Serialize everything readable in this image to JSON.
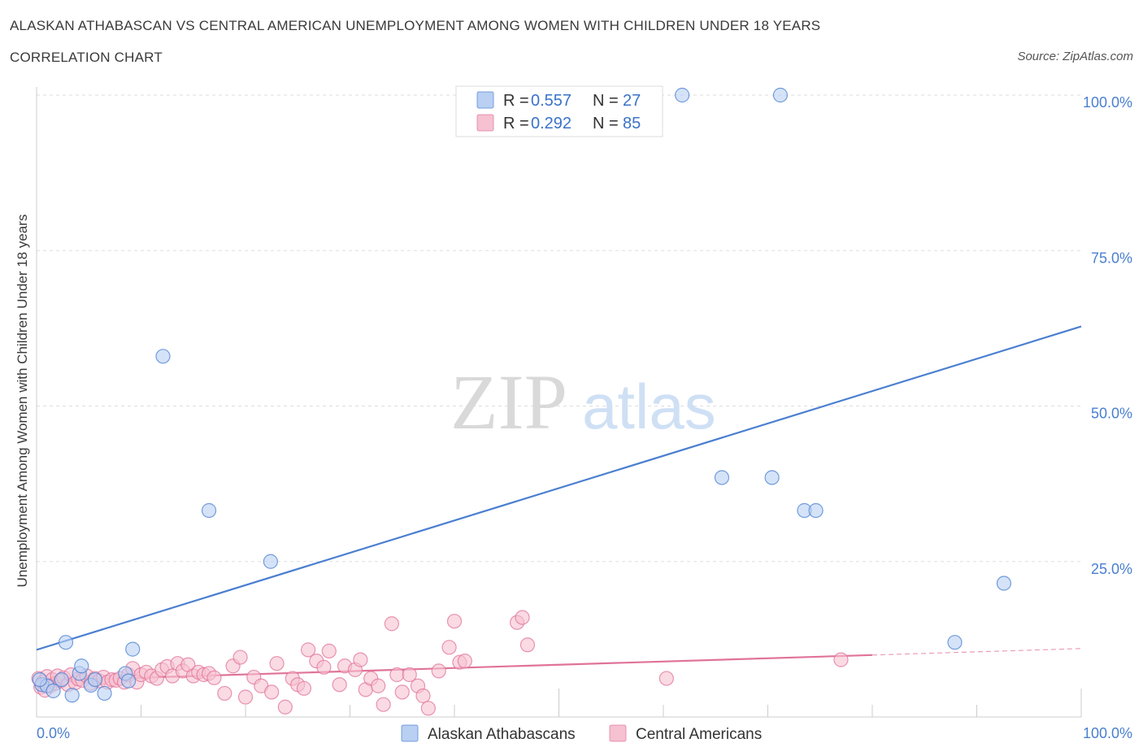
{
  "title": "ALASKAN ATHABASCAN VS CENTRAL AMERICAN UNEMPLOYMENT AMONG WOMEN WITH CHILDREN UNDER 18 YEARS",
  "subtitle": "CORRELATION CHART",
  "source": "Source: ZipAtlas.com",
  "watermark": {
    "zip": "ZIP",
    "atlas": "atlas"
  },
  "legend_top": {
    "r_label": "R =",
    "n_label": "N =",
    "rows": [
      {
        "r": "0.557",
        "n": "27",
        "color": "#a9c6f2"
      },
      {
        "r": "0.292",
        "n": "85",
        "color": "#f6b8cb"
      }
    ]
  },
  "chart_data": {
    "type": "scatter",
    "ylabel": "Unemployment Among Women with Children Under 18 years",
    "xlabel": "",
    "xlim": [
      0,
      100
    ],
    "ylim": [
      0,
      100
    ],
    "x_ticks": [
      "0.0%",
      "100.0%"
    ],
    "y_ticks": [
      {
        "value": 100,
        "label": "100.0%"
      },
      {
        "value": 75,
        "label": "75.0%"
      },
      {
        "value": 50,
        "label": "50.0%"
      },
      {
        "value": 25,
        "label": "25.0%"
      }
    ],
    "grid": true,
    "legend_position": "bottom",
    "series": [
      {
        "name": "Alaskan Athabascans",
        "color": "#4a7fd0",
        "fill": "#b9d0f3",
        "r": 0.557,
        "n": 27,
        "trend": {
          "x0": 0,
          "y0": 10.8,
          "x1": 100,
          "y1": 62.8,
          "dash_from": null
        },
        "points": [
          [
            0.5,
            5.2
          ],
          [
            1.0,
            5.0
          ],
          [
            1.6,
            4.2
          ],
          [
            2.4,
            6.0
          ],
          [
            2.8,
            12.0
          ],
          [
            3.4,
            3.5
          ],
          [
            4.1,
            7.0
          ],
          [
            4.3,
            8.2
          ],
          [
            5.2,
            5.1
          ],
          [
            5.6,
            6.0
          ],
          [
            6.5,
            3.8
          ],
          [
            8.5,
            7.0
          ],
          [
            8.8,
            5.8
          ],
          [
            9.2,
            10.9
          ],
          [
            12.1,
            58.0
          ],
          [
            16.5,
            33.2
          ],
          [
            22.4,
            25.0
          ],
          [
            52.0,
            100.0
          ],
          [
            61.8,
            100.0
          ],
          [
            71.2,
            100.0
          ],
          [
            65.6,
            38.5
          ],
          [
            70.4,
            38.5
          ],
          [
            73.5,
            33.2
          ],
          [
            74.6,
            33.2
          ],
          [
            87.9,
            12.0
          ],
          [
            92.6,
            21.5
          ],
          [
            0.3,
            6.0
          ]
        ]
      },
      {
        "name": "Central Americans",
        "color": "#e0739a",
        "fill": "#f6c1d1",
        "r": 0.292,
        "n": 85,
        "trend": {
          "x0": 0,
          "y0": 5.8,
          "x1": 100,
          "y1": 11.0,
          "dash_from": 80
        },
        "points": [
          [
            0.2,
            6.2
          ],
          [
            0.4,
            4.8
          ],
          [
            0.6,
            5.6
          ],
          [
            0.8,
            4.3
          ],
          [
            1.0,
            6.5
          ],
          [
            1.3,
            5.0
          ],
          [
            1.5,
            6.0
          ],
          [
            1.8,
            5.4
          ],
          [
            2.0,
            6.6
          ],
          [
            2.3,
            5.8
          ],
          [
            2.6,
            6.3
          ],
          [
            3.0,
            5.2
          ],
          [
            3.3,
            6.8
          ],
          [
            3.7,
            5.5
          ],
          [
            4.0,
            6.1
          ],
          [
            4.4,
            5.9
          ],
          [
            4.8,
            6.6
          ],
          [
            5.2,
            5.4
          ],
          [
            5.6,
            6.2
          ],
          [
            6.0,
            5.8
          ],
          [
            6.4,
            6.4
          ],
          [
            6.8,
            5.6
          ],
          [
            7.2,
            6.0
          ],
          [
            7.6,
            5.9
          ],
          [
            8.0,
            6.2
          ],
          [
            8.4,
            5.6
          ],
          [
            8.8,
            6.8
          ],
          [
            9.2,
            7.8
          ],
          [
            9.6,
            5.6
          ],
          [
            10.0,
            6.8
          ],
          [
            10.5,
            7.2
          ],
          [
            11.0,
            6.6
          ],
          [
            11.5,
            6.2
          ],
          [
            12.0,
            7.6
          ],
          [
            12.5,
            8.1
          ],
          [
            13.0,
            6.6
          ],
          [
            13.5,
            8.6
          ],
          [
            14.0,
            7.4
          ],
          [
            14.5,
            8.4
          ],
          [
            15.0,
            6.6
          ],
          [
            15.5,
            7.2
          ],
          [
            16.0,
            6.8
          ],
          [
            16.5,
            7.0
          ],
          [
            17.0,
            6.3
          ],
          [
            18.0,
            3.8
          ],
          [
            18.8,
            8.2
          ],
          [
            19.5,
            9.6
          ],
          [
            20.0,
            3.2
          ],
          [
            20.8,
            6.4
          ],
          [
            21.5,
            5.0
          ],
          [
            22.5,
            4.0
          ],
          [
            23.0,
            8.6
          ],
          [
            23.8,
            1.6
          ],
          [
            24.5,
            6.2
          ],
          [
            25.0,
            5.2
          ],
          [
            25.6,
            4.6
          ],
          [
            26.0,
            10.8
          ],
          [
            26.8,
            9.0
          ],
          [
            27.5,
            8.0
          ],
          [
            28.0,
            10.6
          ],
          [
            29.0,
            5.2
          ],
          [
            29.5,
            8.2
          ],
          [
            30.5,
            7.6
          ],
          [
            31.0,
            9.2
          ],
          [
            31.5,
            4.4
          ],
          [
            32.0,
            6.2
          ],
          [
            32.7,
            5.0
          ],
          [
            33.2,
            2.0
          ],
          [
            34.5,
            6.8
          ],
          [
            35.0,
            4.0
          ],
          [
            35.7,
            6.8
          ],
          [
            36.5,
            5.0
          ],
          [
            37.0,
            3.4
          ],
          [
            37.5,
            1.4
          ],
          [
            38.5,
            7.4
          ],
          [
            39.5,
            11.2
          ],
          [
            40.0,
            15.4
          ],
          [
            40.5,
            8.8
          ],
          [
            41.0,
            9.0
          ],
          [
            46.0,
            15.2
          ],
          [
            46.5,
            16.0
          ],
          [
            47.0,
            11.6
          ],
          [
            60.3,
            6.2
          ],
          [
            77.0,
            9.2
          ],
          [
            34.0,
            15.0
          ]
        ]
      }
    ]
  }
}
